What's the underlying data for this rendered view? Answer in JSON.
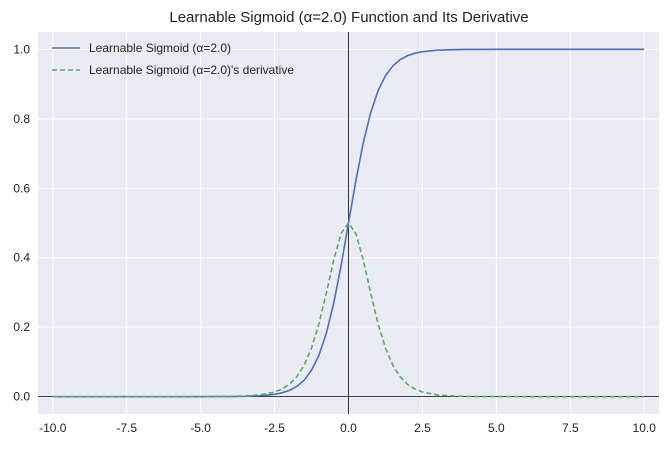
{
  "chart_data": {
    "type": "line",
    "title": "Learnable Sigmoid (α=2.0) Function and Its Derivative",
    "xlabel": "",
    "ylabel": "",
    "xlim": [
      -10.5,
      10.5
    ],
    "ylim": [
      -0.05,
      1.05
    ],
    "grid": true,
    "legend_position": "top-left",
    "x_ticks": [
      -10.0,
      -7.5,
      -5.0,
      -2.5,
      0.0,
      2.5,
      5.0,
      7.5,
      10.0
    ],
    "x_tick_labels": [
      "-10.0",
      "-7.5",
      "-5.0",
      "-2.5",
      "0.0",
      "2.5",
      "5.0",
      "7.5",
      "10.0"
    ],
    "y_ticks": [
      0.0,
      0.2,
      0.4,
      0.6,
      0.8,
      1.0
    ],
    "y_tick_labels": [
      "0.0",
      "0.2",
      "0.4",
      "0.6",
      "0.8",
      "1.0"
    ],
    "reference_lines": {
      "x": 0,
      "y": 0
    },
    "x": [
      -10,
      -9,
      -8,
      -7,
      -6,
      -5,
      -4.5,
      -4,
      -3.5,
      -3,
      -2.5,
      -2.25,
      -2,
      -1.75,
      -1.5,
      -1.25,
      -1,
      -0.75,
      -0.5,
      -0.25,
      0,
      0.25,
      0.5,
      0.75,
      1,
      1.25,
      1.5,
      1.75,
      2,
      2.25,
      2.5,
      3,
      3.5,
      4,
      4.5,
      5,
      6,
      7,
      8,
      9,
      10
    ],
    "series": [
      {
        "name": "Learnable Sigmoid (α=2.0)",
        "color": "#4c72b0",
        "style": "solid",
        "values": [
          0.0,
          0.0,
          0.0,
          0.0,
          0.0,
          0.0,
          0.0001,
          0.0003,
          0.0009,
          0.0025,
          0.0067,
          0.011,
          0.018,
          0.0293,
          0.0474,
          0.0759,
          0.1192,
          0.1824,
          0.2689,
          0.3775,
          0.5,
          0.6225,
          0.7311,
          0.8176,
          0.8808,
          0.9241,
          0.9526,
          0.9707,
          0.982,
          0.989,
          0.9933,
          0.9975,
          0.9991,
          0.9997,
          0.9999,
          1.0,
          1.0,
          1.0,
          1.0,
          1.0,
          1.0
        ]
      },
      {
        "name": "Learnable Sigmoid (α=2.0)'s derivative",
        "color": "#55a868",
        "style": "dashed",
        "values": [
          0.0,
          0.0,
          0.0,
          0.0,
          0.0,
          0.0001,
          0.0002,
          0.0007,
          0.0018,
          0.0049,
          0.0133,
          0.0218,
          0.0353,
          0.0569,
          0.0904,
          0.1402,
          0.21,
          0.2983,
          0.3932,
          0.47,
          0.5,
          0.47,
          0.3932,
          0.2983,
          0.21,
          0.1402,
          0.0904,
          0.0569,
          0.0353,
          0.0218,
          0.0133,
          0.0049,
          0.0018,
          0.0007,
          0.0002,
          0.0001,
          0.0,
          0.0,
          0.0,
          0.0,
          0.0
        ]
      }
    ]
  }
}
